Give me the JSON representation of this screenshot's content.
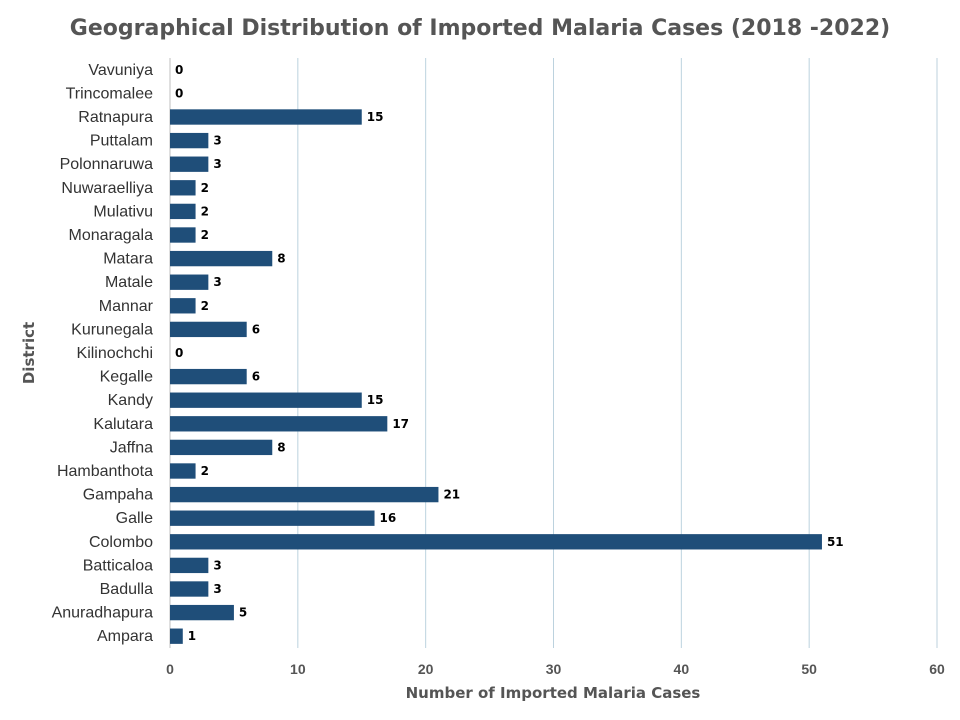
{
  "chart_data": {
    "type": "bar",
    "orientation": "horizontal",
    "title": "Geographical Distribution of Imported Malaria Cases (2018 -2022)",
    "xlabel": "Number of Imported Malaria Cases",
    "ylabel": "District",
    "xlim": [
      0,
      60
    ],
    "xticks": [
      0,
      10,
      20,
      30,
      40,
      50,
      60
    ],
    "grid": "vertical",
    "legend": "none",
    "bar_color": "#1F4E79",
    "categories": [
      "Ampara",
      "Anuradhapura",
      "Badulla",
      "Batticaloa",
      "Colombo",
      "Galle",
      "Gampaha",
      "Hambanthota",
      "Jaffna",
      "Kalutara",
      "Kandy",
      "Kegalle",
      "Kilinochchi",
      "Kurunegala",
      "Mannar",
      "Matale",
      "Matara",
      "Monaragala",
      "Mulativu",
      "Nuwaraelliya",
      "Polonnaruwa",
      "Puttalam",
      "Ratnapura",
      "Trincomalee",
      "Vavuniya"
    ],
    "values": [
      1,
      5,
      3,
      3,
      51,
      16,
      21,
      2,
      8,
      17,
      15,
      6,
      0,
      6,
      2,
      3,
      8,
      2,
      2,
      2,
      3,
      3,
      15,
      0,
      0
    ]
  }
}
